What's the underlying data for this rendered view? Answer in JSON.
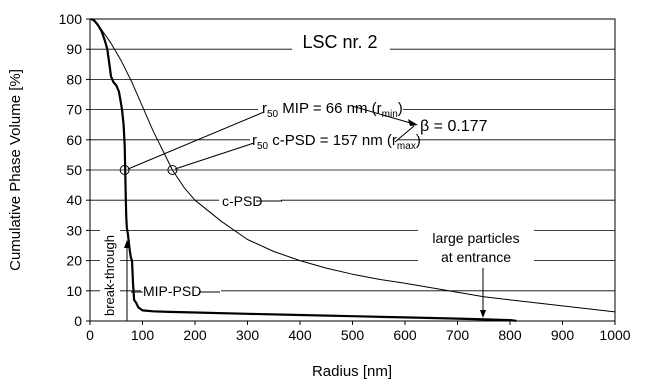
{
  "chart_data": {
    "type": "line",
    "title": "LSC nr. 2",
    "xlabel": "Radius [nm]",
    "ylabel": "Cumulative Phase Volume [%]",
    "xlim": [
      0,
      1000
    ],
    "ylim": [
      0,
      100
    ],
    "x_ticks": [
      0,
      100,
      200,
      300,
      400,
      500,
      600,
      700,
      800,
      900,
      1000
    ],
    "y_ticks": [
      0,
      10,
      20,
      30,
      40,
      50,
      60,
      70,
      80,
      90,
      100
    ],
    "grid": "horizontal",
    "series": [
      {
        "name": "MIP-PSD",
        "points": [
          [
            2,
            100
          ],
          [
            8,
            99.5
          ],
          [
            15,
            98
          ],
          [
            22,
            96
          ],
          [
            28,
            93
          ],
          [
            33,
            90
          ],
          [
            37,
            85
          ],
          [
            40,
            81
          ],
          [
            45,
            79
          ],
          [
            50,
            78
          ],
          [
            55,
            76
          ],
          [
            58,
            73
          ],
          [
            61,
            70
          ],
          [
            64,
            65
          ],
          [
            66,
            58
          ],
          [
            67,
            50
          ],
          [
            68,
            42
          ],
          [
            69,
            35
          ],
          [
            70,
            31
          ],
          [
            72,
            29
          ],
          [
            76,
            23
          ],
          [
            78,
            21
          ],
          [
            80,
            20
          ],
          [
            82,
            12
          ],
          [
            84,
            7
          ],
          [
            88,
            6
          ],
          [
            92,
            4.5
          ],
          [
            100,
            3.5
          ],
          [
            120,
            3.2
          ],
          [
            150,
            3.0
          ],
          [
            200,
            2.8
          ],
          [
            300,
            2.4
          ],
          [
            400,
            2.0
          ],
          [
            500,
            1.6
          ],
          [
            600,
            1.2
          ],
          [
            700,
            0.8
          ],
          [
            760,
            0.5
          ],
          [
            800,
            0.3
          ],
          [
            810,
            0.1
          ],
          [
            812,
            0
          ]
        ]
      },
      {
        "name": "c-PSD",
        "points": [
          [
            5,
            100
          ],
          [
            20,
            97
          ],
          [
            40,
            92
          ],
          [
            60,
            86
          ],
          [
            80,
            79
          ],
          [
            100,
            71
          ],
          [
            120,
            63
          ],
          [
            140,
            56
          ],
          [
            157,
            50
          ],
          [
            180,
            44
          ],
          [
            200,
            40
          ],
          [
            250,
            33
          ],
          [
            300,
            27
          ],
          [
            350,
            23
          ],
          [
            400,
            20
          ],
          [
            450,
            17.5
          ],
          [
            500,
            15.5
          ],
          [
            550,
            13.8
          ],
          [
            600,
            12.5
          ],
          [
            650,
            11
          ],
          [
            700,
            9.5
          ],
          [
            750,
            8
          ],
          [
            800,
            7
          ],
          [
            850,
            6
          ],
          [
            900,
            5
          ],
          [
            950,
            4
          ],
          [
            1000,
            3
          ]
        ]
      }
    ],
    "markers": [
      {
        "x": 66,
        "y": 50
      },
      {
        "x": 157,
        "y": 50
      }
    ]
  },
  "annotations": {
    "r50_mip_r": "r",
    "r50_mip_sub": "50",
    "r50_mip_mid": " MIP = 66 nm (r",
    "r50_mip_min": "min",
    "r50_mip_end": ")",
    "r50_cpsd_r": "r",
    "r50_cpsd_sub": "50",
    "r50_cpsd_mid": " c-PSD = 157 nm (r",
    "r50_cpsd_max": "max",
    "r50_cpsd_end": ")",
    "beta": "β = 0.177",
    "cpsd_label": "c-PSD",
    "mip_label": "MIP-PSD",
    "breakthrough": "break-through",
    "large_particles_1": "large particles",
    "large_particles_2": "at entrance"
  }
}
